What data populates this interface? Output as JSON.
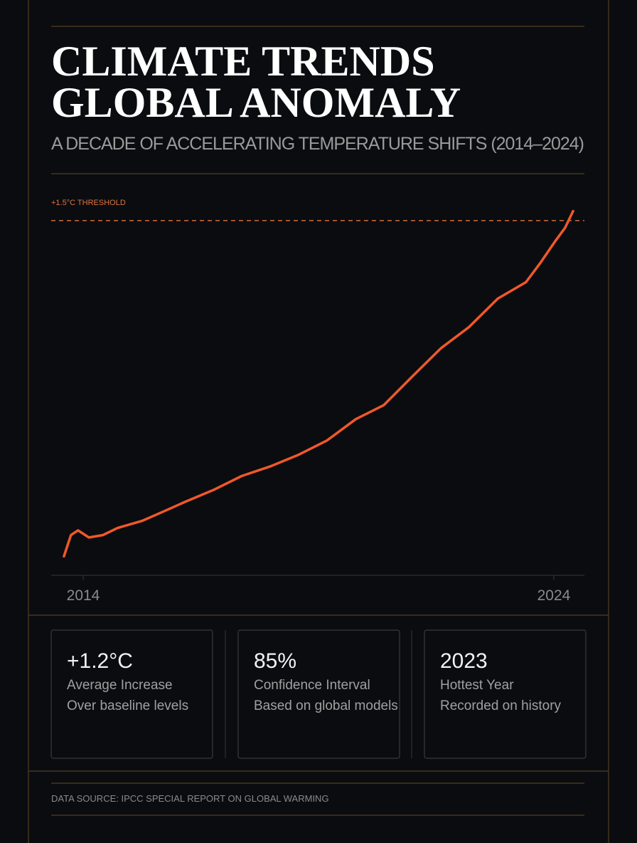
{
  "header": {
    "title_lines": [
      "CLIMATE TRENDS",
      "GLOBAL ANOMALY"
    ],
    "subtitle": "A DECADE OF ACCELERATING TEMPERATURE SHIFTS (2014–2024)"
  },
  "chart_data": {
    "type": "line",
    "color": "#f0582a",
    "x": [
      2013.59,
      2013.74,
      2013.89,
      2014.12,
      2014.42,
      2014.73,
      2015.25,
      2015.71,
      2016.16,
      2016.76,
      2017.37,
      2017.97,
      2018.58,
      2019.18,
      2019.79,
      2020.39,
      2020.99,
      2021.6,
      2022.2,
      2022.81,
      2023.41,
      2023.71,
      2024.02,
      2024.24,
      2024.41
    ],
    "values": [
      0.08,
      0.17,
      0.19,
      0.16,
      0.17,
      0.2,
      0.23,
      0.27,
      0.31,
      0.36,
      0.42,
      0.46,
      0.51,
      0.57,
      0.66,
      0.72,
      0.84,
      0.96,
      1.05,
      1.17,
      1.24,
      1.32,
      1.41,
      1.47,
      1.54
    ],
    "xlim": [
      2013.32,
      2024.65
    ],
    "xticks": [
      2014,
      2024
    ],
    "ylim": [
      0,
      1.65
    ],
    "threshold": {
      "value": 1.5,
      "label": "+1.5°C THRESHOLD",
      "color": "#e0743c"
    }
  },
  "stats": [
    {
      "value": "+1.2°C",
      "label": "Average Increase",
      "note": "Over baseline levels"
    },
    {
      "value": "85%",
      "label": "Confidence Interval",
      "note": "Based on global models"
    },
    {
      "value": "2023",
      "label": "Hottest Year",
      "note": "Recorded on history"
    }
  ],
  "footer": {
    "source": "DATA SOURCE: IPCC SPECIAL REPORT ON GLOBAL WARMING"
  }
}
